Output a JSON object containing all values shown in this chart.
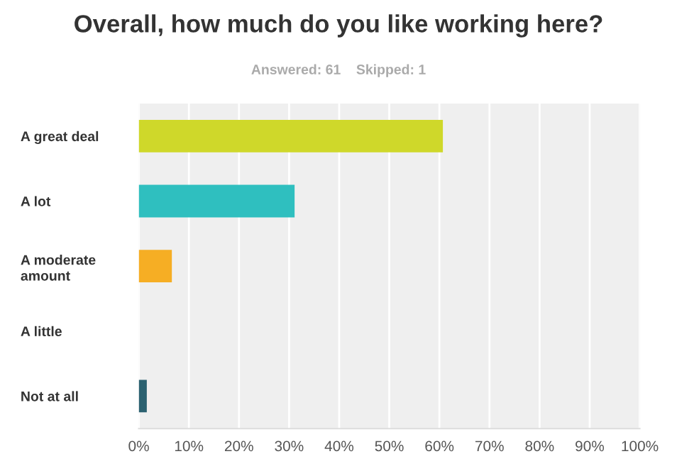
{
  "chart_data": {
    "type": "bar",
    "orientation": "horizontal",
    "title": "Overall, how much do you like working here?",
    "subtitle": "Answered: 61    Skipped: 1",
    "categories": [
      "A great deal",
      "A lot",
      "A moderate amount",
      "A little",
      "Not at all"
    ],
    "values": [
      60.7,
      31.1,
      6.6,
      0,
      1.6
    ],
    "colors": [
      "#cfd82a",
      "#2fbfbf",
      "#f6ae24",
      "#3c8f8f",
      "#2b6170"
    ],
    "xlim": [
      0,
      100
    ],
    "xticks": [
      {
        "value": 0,
        "label": "0%"
      },
      {
        "value": 10,
        "label": "10%"
      },
      {
        "value": 20,
        "label": "20%"
      },
      {
        "value": 30,
        "label": "30%"
      },
      {
        "value": 40,
        "label": "40%"
      },
      {
        "value": 50,
        "label": "50%"
      },
      {
        "value": 60,
        "label": "60%"
      },
      {
        "value": 70,
        "label": "70%"
      },
      {
        "value": 80,
        "label": "80%"
      },
      {
        "value": 90,
        "label": "90%"
      },
      {
        "value": 100,
        "label": "100%"
      }
    ],
    "grid": "x"
  }
}
